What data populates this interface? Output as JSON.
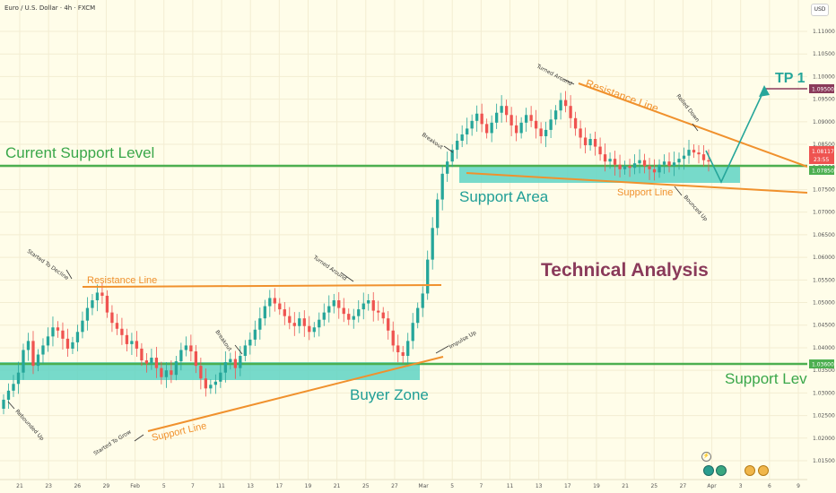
{
  "window": {
    "symbol_title": "Euro / U.S. Dollar · 4h · FXCM",
    "currency_button": "USD"
  },
  "price_axis": {
    "ticks": [
      "1.11000",
      "1.10500",
      "1.10000",
      "1.09500",
      "1.09000",
      "1.08500",
      "1.08000",
      "1.07500",
      "1.07000",
      "1.06500",
      "1.06000",
      "1.05500",
      "1.05000",
      "1.04500",
      "1.04000",
      "1.03500",
      "1.03000",
      "1.02500",
      "1.02000",
      "1.01500"
    ],
    "tick_values": [
      1.11,
      1.105,
      1.1,
      1.095,
      1.09,
      1.085,
      1.08,
      1.075,
      1.07,
      1.065,
      1.06,
      1.055,
      1.05,
      1.045,
      1.04,
      1.035,
      1.03,
      1.025,
      1.02,
      1.015
    ]
  },
  "time_axis": {
    "labels": [
      "21",
      "23",
      "26",
      "29",
      "Feb",
      "5",
      "7",
      "11",
      "13",
      "17",
      "19",
      "21",
      "25",
      "27",
      "Mar",
      "5",
      "7",
      "11",
      "13",
      "17",
      "19",
      "21",
      "25",
      "27",
      "Apr",
      "3",
      "6",
      "9"
    ]
  },
  "badges": {
    "tp_price": "1.09500",
    "current_price": "1.08117",
    "countdown": "23:55",
    "support_high": "1.07850",
    "support_low": "1.03600"
  },
  "annotations": {
    "title": "Technical Analysis",
    "tp_label": "TP 1",
    "current_support_level": "Current Support Level",
    "support_level": "Support Level",
    "support_area": "Support Area",
    "buyer_zone": "Buyer Zone",
    "resistance_line_left": "Resistance Line",
    "resistance_line_right": "Resistance Line",
    "support_line_left": "Support Line",
    "support_line_right": "Support Line",
    "started_to_decline": "Started To Decline",
    "turned_around_left": "Turned Around",
    "turned_around_right": "Turned Around",
    "breakout_left": "Breakout",
    "breakout_right": "Breakout",
    "rebounded_up": "Rebounded Up",
    "started_to_grow": "Started To Grow",
    "impulse_up": "Impulse Up",
    "bounced_up": "Bounced Up",
    "rolled_down": "Rolled Down"
  },
  "colors": {
    "up": "#26a69a",
    "down": "#ef5350",
    "orange": "#f0912d",
    "level": "#4caf50",
    "zone": "#5fd3c4",
    "tp": "#26a69a",
    "title": "#8a3a5a"
  },
  "chart_data": {
    "type": "candlestick",
    "symbol": "EURUSD",
    "timeframe": "4h",
    "ylim": [
      1.012,
      1.115
    ],
    "levels": [
      {
        "name": "Current Support Level",
        "value": 1.0785
      },
      {
        "name": "Support Level",
        "value": 1.036
      },
      {
        "name": "TP 1",
        "value": 1.095
      }
    ],
    "zones": [
      {
        "name": "Buyer Zone",
        "from": 1.0325,
        "to": 1.036
      },
      {
        "name": "Support Area",
        "from": 1.0745,
        "to": 1.0785
      }
    ],
    "closes": [
      1.0285,
      1.0305,
      1.032,
      1.0345,
      1.0395,
      1.0415,
      1.036,
      1.0385,
      1.0405,
      1.0425,
      1.0445,
      1.0438,
      1.042,
      1.0398,
      1.0412,
      1.0435,
      1.046,
      1.0488,
      1.0505,
      1.0522,
      1.0515,
      1.0478,
      1.0455,
      1.0442,
      1.0428,
      1.0408,
      1.0415,
      1.0398,
      1.0372,
      1.0365,
      1.0378,
      1.0355,
      1.0335,
      1.035,
      1.034,
      1.037,
      1.0395,
      1.0405,
      1.0392,
      1.036,
      1.0332,
      1.031,
      1.0318,
      1.0325,
      1.0345,
      1.0368,
      1.0375,
      1.0355,
      1.0382,
      1.0405,
      1.0418,
      1.044,
      1.0465,
      1.0492,
      1.051,
      1.0498,
      1.0485,
      1.047,
      1.0455,
      1.0448,
      1.0465,
      1.0448,
      1.0435,
      1.0445,
      1.0462,
      1.0478,
      1.0492,
      1.0505,
      1.0488,
      1.0475,
      1.0462,
      1.047,
      1.0485,
      1.0498,
      1.0505,
      1.0482,
      1.0478,
      1.0465,
      1.0438,
      1.0405,
      1.039,
      1.0382,
      1.0415,
      1.0455,
      1.0488,
      1.052,
      1.0595,
      1.0665,
      1.0728,
      1.0785,
      1.0812,
      1.0838,
      1.0858,
      1.0872,
      1.0885,
      1.0902,
      1.0918,
      1.0895,
      1.0875,
      1.0898,
      1.092,
      1.0935,
      1.0915,
      1.0892,
      1.0875,
      1.0898,
      1.0915,
      1.0902,
      1.0885,
      1.0868,
      1.0882,
      1.0905,
      1.0925,
      1.0948,
      1.0935,
      1.0908,
      1.0885,
      1.0865,
      1.0848,
      1.0862,
      1.0845,
      1.0828,
      1.0812,
      1.0818,
      1.0805,
      1.0795,
      1.0802,
      1.0798,
      1.0808,
      1.0815,
      1.0802,
      1.0795,
      1.0788,
      1.0805,
      1.0812,
      1.0802,
      1.081,
      1.0818,
      1.0825,
      1.0838,
      1.0832,
      1.0828,
      1.0815,
      1.0812
    ]
  }
}
